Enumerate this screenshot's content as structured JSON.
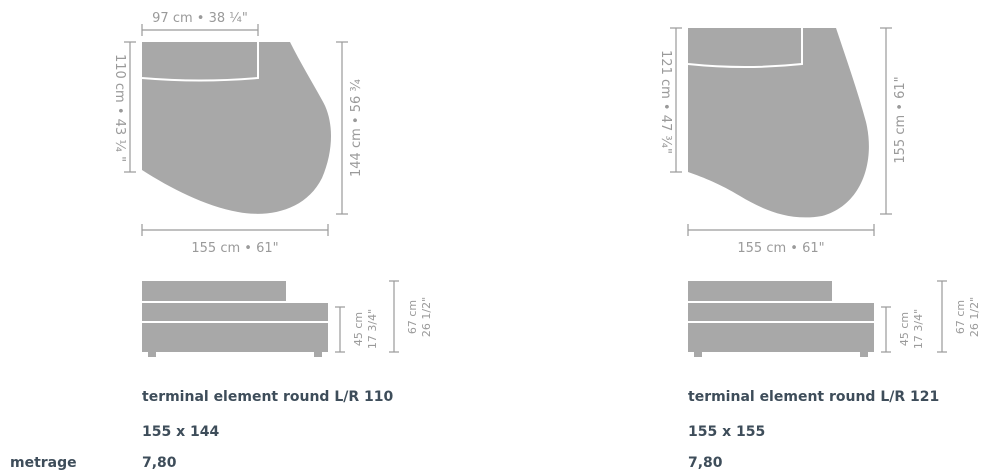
{
  "products": [
    {
      "name": "terminal element round L/R 110",
      "size": "155 x 144",
      "metrage": "7,80",
      "dims": {
        "top_width": "97 cm • 38 ¼\"",
        "left_depth": "110 cm • 43 ¼ \"",
        "right_depth": "144 cm • 56 ¾",
        "bottom_width": "155 cm • 61\"",
        "seat_cm": "45 cm",
        "seat_in": "17 3/4\"",
        "back_cm": "67 cm",
        "back_in": "26 1/2\""
      }
    },
    {
      "name": "terminal element round L/R 121",
      "size": "155 x 155",
      "metrage": "7,80",
      "dims": {
        "left_depth": "121 cm • 47 ¾\"",
        "right_depth": "155 cm • 61\"",
        "bottom_width": "155 cm • 61\"",
        "seat_cm": "45 cm",
        "seat_in": "17 3/4\"",
        "back_cm": "67 cm",
        "back_in": "26 1/2\""
      }
    }
  ],
  "labels": {
    "metrage": "metrage"
  },
  "colors": {
    "shape": "#a8a8a8",
    "dimension": "#9a9a9a",
    "text": "#3e4d5a"
  }
}
